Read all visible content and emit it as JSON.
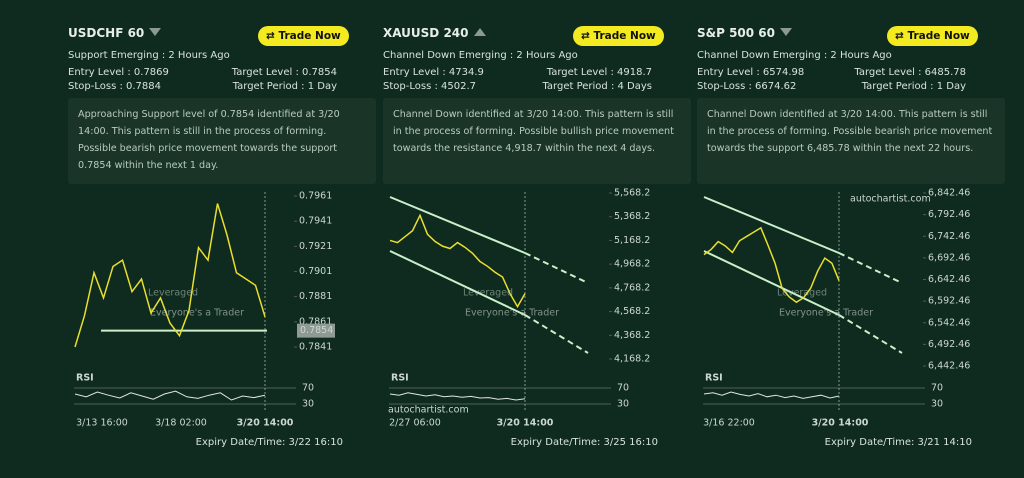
{
  "panels": [
    {
      "symbol": "USDCHF 60",
      "direction": "down",
      "button": "Trade Now",
      "pattern": "Support Emerging : 2 Hours Ago",
      "entry": "Entry Level : 0.7869",
      "target": "Target Level : 0.7854",
      "stop": "Stop-Loss : 0.7884",
      "period": "Target Period : 1 Day",
      "description": "Approaching Support level of 0.7854 identified at 3/20 14:00. This pattern is still in the process of forming. Possible bearish price movement towards the support 0.7854 within the next 1 day.",
      "chart": {
        "yticks": [
          0.7961,
          0.7941,
          0.7921,
          0.7901,
          0.7881,
          0.7861,
          0.7841
        ],
        "level": 0.7854,
        "price": [
          0.7841,
          0.7866,
          0.79,
          0.788,
          0.7905,
          0.791,
          0.7885,
          0.7895,
          0.7868,
          0.788,
          0.786,
          0.785,
          0.787,
          0.792,
          0.791,
          0.7955,
          0.793,
          0.79,
          0.7895,
          0.789,
          0.7865
        ],
        "rsi": [
          55,
          48,
          60,
          52,
          45,
          58,
          50,
          42,
          55,
          62,
          48,
          44,
          52,
          58,
          40,
          50,
          46,
          52
        ],
        "rsi_ticks": [
          70,
          30
        ],
        "rsi_label": "RSI",
        "x_labels": [
          "3/13 16:00",
          "3/18 02:00",
          "3/20 14:00"
        ]
      },
      "expiry": "Expiry Date/Time: 3/22 16:10"
    },
    {
      "symbol": "XAUUSD 240",
      "direction": "up",
      "button": "Trade Now",
      "pattern": "Channel Down Emerging : 2 Hours Ago",
      "entry": "Entry Level : 4734.9",
      "target": "Target Level : 4918.7",
      "stop": "Stop-Loss : 4502.7",
      "period": "Target Period : 4 Days",
      "description": "Channel Down identified at 3/20 14:00. This pattern is still in the process of forming. Possible bullish price movement towards the resistance 4,918.7 within the next 4 days.",
      "chart": {
        "yticks": [
          {
            "value": 5568.2,
            "label": "5,568.2"
          },
          {
            "value": 5368.2,
            "label": "5,368.2"
          },
          {
            "value": 5168.2,
            "label": "5,168.2"
          },
          {
            "value": 4968.2,
            "label": "4,968.2"
          },
          {
            "value": 4768.2,
            "label": "4,768.2"
          },
          {
            "value": 4568.2,
            "label": "4,568.2"
          },
          {
            "value": 4368.2,
            "label": "4,368.2"
          },
          {
            "value": 4168.2,
            "label": "4,168.2"
          }
        ],
        "price": [
          5168,
          5150,
          5200,
          5250,
          5380,
          5220,
          5160,
          5120,
          5100,
          5150,
          5110,
          5060,
          4990,
          4950,
          4900,
          4860,
          4720,
          4610,
          4720
        ],
        "rsi": [
          55,
          52,
          58,
          54,
          50,
          53,
          48,
          50,
          47,
          49,
          45,
          46,
          42,
          44,
          40,
          43
        ],
        "rsi_ticks": [
          70,
          30
        ],
        "rsi_label": "RSI",
        "x_labels": [
          "2/27 06:00",
          "3/20 14:00"
        ]
      },
      "expiry": "Expiry Date/Time: 3/25 16:10"
    },
    {
      "symbol": "S&P 500 60",
      "direction": "down",
      "button": "Trade Now",
      "pattern": "Channel Down Emerging : 2 Hours Ago",
      "entry": "Entry Level : 6574.98",
      "target": "Target Level : 6485.78",
      "stop": "Stop-Loss : 6674.62",
      "period": "Target Period : 1 Day",
      "description": "Channel Down identified at 3/20 14:00. This pattern is still in the process of forming. Possible bearish price movement towards the support 6,485.78 within the next 22 hours.",
      "chart": {
        "yticks": [
          {
            "value": 6842.46,
            "label": "6,842.46"
          },
          {
            "value": 6792.46,
            "label": "6,792.46"
          },
          {
            "value": 6742.46,
            "label": "6,742.46"
          },
          {
            "value": 6692.46,
            "label": "6,692.46"
          },
          {
            "value": 6642.46,
            "label": "6,642.46"
          },
          {
            "value": 6592.46,
            "label": "6,592.46"
          },
          {
            "value": 6542.46,
            "label": "6,542.46"
          },
          {
            "value": 6492.46,
            "label": "6,492.46"
          },
          {
            "value": 6442.46,
            "label": "6,442.46"
          }
        ],
        "price": [
          6700,
          6712,
          6730,
          6720,
          6705,
          6732,
          6742,
          6752,
          6762,
          6722,
          6680,
          6622,
          6602,
          6590,
          6600,
          6622,
          6662,
          6692,
          6680,
          6640
        ],
        "rsi": [
          55,
          58,
          52,
          60,
          54,
          50,
          56,
          48,
          52,
          46,
          50,
          44,
          48,
          52,
          45,
          50
        ],
        "rsi_ticks": [
          70,
          30
        ],
        "rsi_label": "RSI",
        "x_labels": [
          "3/16 22:00",
          "3/20 14:00"
        ]
      },
      "expiry": "Expiry Date/Time: 3/21 14:10"
    }
  ],
  "watermark": {
    "brand": "Leveraged",
    "tagline": "Everyone's a Trader",
    "source": "autochartist.com"
  }
}
